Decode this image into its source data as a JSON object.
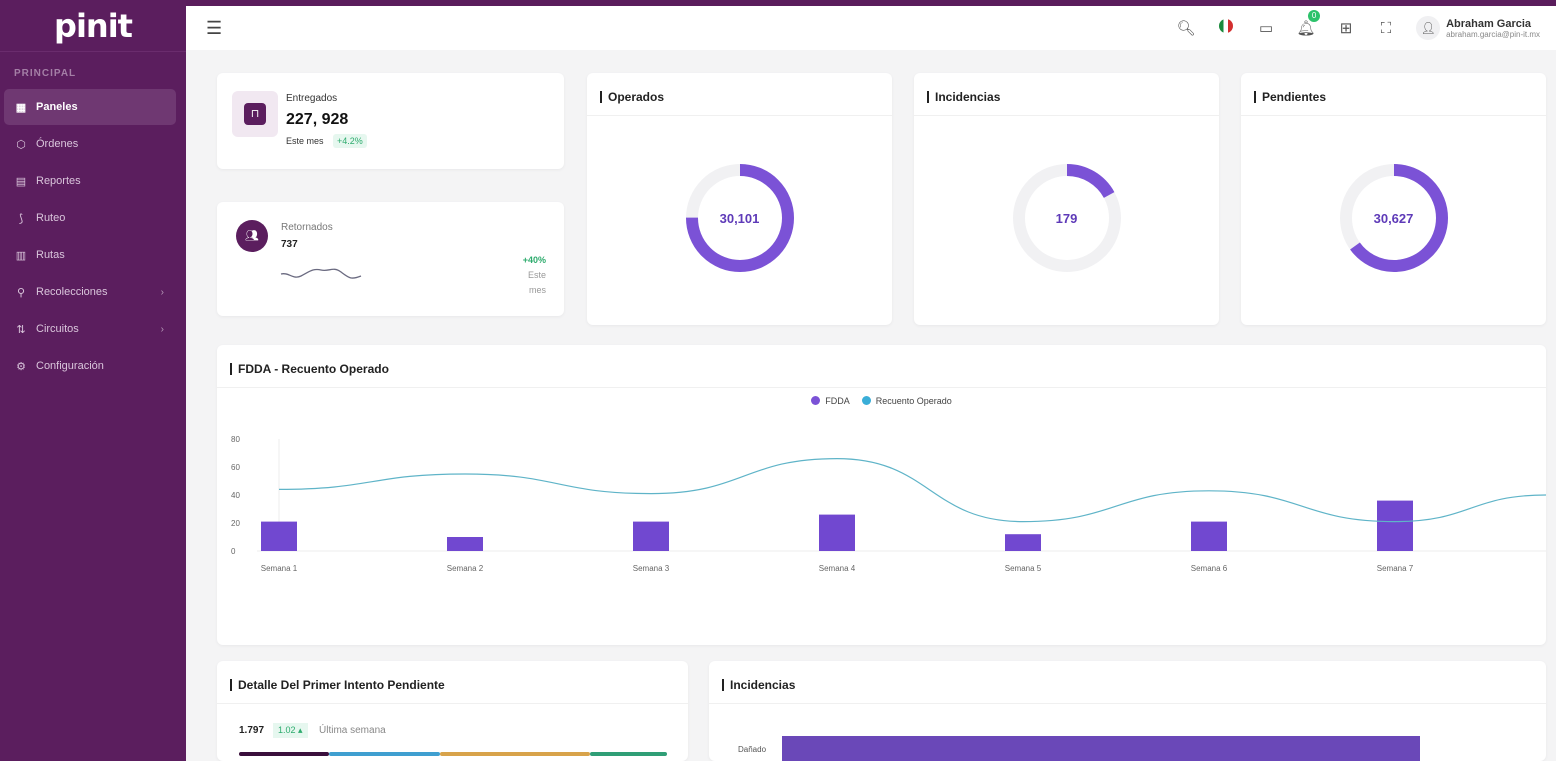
{
  "app": {
    "logo": "pinit"
  },
  "sidebar": {
    "section": "PRINCIPAL",
    "items": [
      {
        "label": "Paneles",
        "icon": "grid-icon",
        "active": true
      },
      {
        "label": "Órdenes",
        "icon": "box-icon"
      },
      {
        "label": "Reportes",
        "icon": "clipboard-icon"
      },
      {
        "label": "Ruteo",
        "icon": "route-icon"
      },
      {
        "label": "Rutas",
        "icon": "map-icon"
      },
      {
        "label": "Recolecciones",
        "icon": "pin-icon",
        "chevron": true
      },
      {
        "label": "Circuitos",
        "icon": "circuit-icon",
        "chevron": true
      },
      {
        "label": "Configuración",
        "icon": "settings-icon"
      }
    ]
  },
  "topbar": {
    "notification_count": "0",
    "user_name": "Abraham Garcia",
    "user_email": "abraham.garcia@pin-it.mx"
  },
  "kpis": {
    "entregados": {
      "label": "Entregados",
      "value": "227, 928",
      "period": "Este mes",
      "change": "+4.2%"
    },
    "retornados": {
      "label": "Retornados",
      "value": "737",
      "change": "+40%",
      "period1": "Este",
      "period2": "mes"
    }
  },
  "donuts": [
    {
      "title": "Operados",
      "value": "30,101",
      "fraction": 0.75
    },
    {
      "title": "Incidencias",
      "value": "179",
      "fraction": 0.17
    },
    {
      "title": "Pendientes",
      "value": "30,627",
      "fraction": 0.65
    }
  ],
  "colors": {
    "primary": "#5b1e5e",
    "accent": "#7b52d6",
    "line": "#4fb3c9",
    "positive": "#2dab6d"
  },
  "chart_data": {
    "type": "bar",
    "title": "FDDA - Recuento Operado",
    "categories": [
      "Semana 1",
      "Semana 2",
      "Semana 3",
      "Semana 4",
      "Semana 5",
      "Semana 6",
      "Semana 7"
    ],
    "series": [
      {
        "name": "FDDA",
        "type": "bar",
        "values": [
          21,
          10,
          21,
          26,
          12,
          21,
          36
        ]
      },
      {
        "name": "Recuento Operado",
        "type": "line",
        "values": [
          44,
          55,
          41,
          66,
          21,
          43,
          21
        ]
      }
    ],
    "yticks": [
      0,
      20,
      40,
      60,
      80
    ],
    "ylim": [
      0,
      80
    ],
    "grid": false,
    "legend": "top-center"
  },
  "detalle": {
    "title": "Detalle Del Primer Intento Pendiente",
    "value": "1.797",
    "change": "1.02",
    "period": "Última semana",
    "segments": [
      "#3a0f3c",
      "#3f9fd0",
      "#d8a34a",
      "#2f9e76"
    ]
  },
  "incidencias_bar": {
    "title": "Incidencias",
    "label": "Dañado"
  }
}
